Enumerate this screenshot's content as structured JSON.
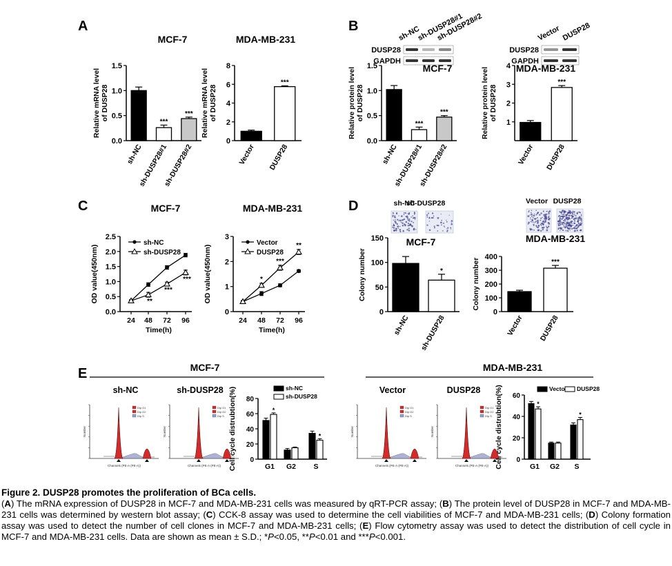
{
  "panel_letters": [
    "A",
    "B",
    "C",
    "D",
    "E"
  ],
  "chart_data": [
    {
      "id": "A1",
      "type": "bar",
      "panel": "A",
      "title": "MCF-7",
      "ylabel": "Relative mRNA level of DUSP28",
      "categories": [
        "sh-NC",
        "sh-DUSP28#1",
        "sh-DUSP28#2"
      ],
      "values": [
        1.0,
        0.26,
        0.44
      ],
      "errors": [
        0.07,
        0.05,
        0.03
      ],
      "fills": [
        "#000000",
        "#ffffff",
        "#c8c8c8"
      ],
      "annotations": [
        "",
        "***",
        "***"
      ],
      "ylim": [
        0,
        1.5
      ],
      "yticks": [
        "0.0",
        "0.5",
        "1.0",
        "1.5"
      ]
    },
    {
      "id": "A2",
      "type": "bar",
      "panel": "A",
      "title": "MDA-MB-231",
      "ylabel": "Relative mRNA level of DUSP28",
      "categories": [
        "Vector",
        "DUSP28"
      ],
      "values": [
        1.0,
        5.75
      ],
      "errors": [
        0.12,
        0.08
      ],
      "fills": [
        "#000000",
        "#ffffff"
      ],
      "annotations": [
        "",
        "***"
      ],
      "ylim": [
        0,
        8
      ],
      "yticks": [
        "0",
        "2",
        "4",
        "6",
        "8"
      ]
    },
    {
      "id": "B1",
      "type": "bar",
      "panel": "B",
      "title": "MCF-7",
      "ylabel": "Relative protein level of DUSP28",
      "categories": [
        "sh-NC",
        "sh-DUSP28#1",
        "sh-DUSP28#2"
      ],
      "values": [
        1.02,
        0.22,
        0.47
      ],
      "errors": [
        0.08,
        0.05,
        0.03
      ],
      "fills": [
        "#000000",
        "#ffffff",
        "#c8c8c8"
      ],
      "annotations": [
        "",
        "***",
        "***"
      ],
      "ylim": [
        0,
        1.5
      ],
      "yticks": [
        "0.0",
        "0.5",
        "1.0",
        "1.5"
      ]
    },
    {
      "id": "B2",
      "type": "bar",
      "panel": "B",
      "title": "MDA-MB-231",
      "ylabel": "Relative protein level of DUSP28",
      "categories": [
        "Vector",
        "DUSP28"
      ],
      "values": [
        0.97,
        2.83
      ],
      "errors": [
        0.1,
        0.1
      ],
      "fills": [
        "#000000",
        "#ffffff"
      ],
      "annotations": [
        "",
        "***"
      ],
      "ylim": [
        0,
        4
      ],
      "yticks": [
        "1",
        "2",
        "3",
        "4"
      ]
    },
    {
      "id": "C1",
      "type": "line",
      "panel": "C",
      "title": "MCF-7",
      "xlabel": "Time(h)",
      "ylabel": "OD value(450nm)",
      "x": [
        24,
        48,
        72,
        96
      ],
      "ylim": [
        0,
        2.5
      ],
      "yticks": [
        "0.0",
        "0.5",
        "1.0",
        "1.5",
        "2.0",
        "2.5"
      ],
      "series": [
        {
          "name": "sh-NC",
          "values": [
            0.36,
            0.9,
            1.47,
            1.88
          ],
          "errors": [
            0.03,
            0.06,
            0.06,
            0.06
          ],
          "marker": "dot",
          "annotations": [
            "",
            "",
            "",
            ""
          ]
        },
        {
          "name": "sh-DUSP28",
          "values": [
            0.36,
            0.56,
            0.92,
            1.3
          ],
          "errors": [
            0.03,
            0.08,
            0.06,
            0.08
          ],
          "marker": "tri",
          "annotations": [
            "",
            "**",
            "***",
            "***"
          ]
        }
      ]
    },
    {
      "id": "C2",
      "type": "line",
      "panel": "C",
      "title": "MDA-MB-231",
      "xlabel": "Time(h)",
      "ylabel": "OD value(450nm)",
      "x": [
        24,
        48,
        72,
        96
      ],
      "ylim": [
        0,
        3
      ],
      "yticks": [
        "0",
        "1",
        "2",
        "3"
      ],
      "series": [
        {
          "name": "Vector",
          "values": [
            0.4,
            0.72,
            1.05,
            1.62
          ],
          "errors": [
            0.04,
            0.08,
            0.06,
            0.05
          ],
          "marker": "dot",
          "annotations": [
            "",
            "",
            "",
            ""
          ]
        },
        {
          "name": "DUSP28",
          "values": [
            0.4,
            1.05,
            1.75,
            2.38
          ],
          "errors": [
            0.04,
            0.08,
            0.1,
            0.1
          ],
          "marker": "tri",
          "annotations": [
            "",
            "*",
            "***",
            "**"
          ]
        }
      ]
    },
    {
      "id": "D1",
      "type": "bar",
      "panel": "D",
      "title": "MCF-7",
      "ylabel": "Colony number",
      "categories": [
        "sh-NC",
        "sh-DUSP28"
      ],
      "values": [
        98,
        64
      ],
      "errors": [
        14,
        12
      ],
      "fills": [
        "#000000",
        "#ffffff"
      ],
      "annotations": [
        "",
        "*"
      ],
      "ylim": [
        0,
        150
      ],
      "yticks": [
        "0",
        "50",
        "100",
        "150"
      ]
    },
    {
      "id": "D2",
      "type": "bar",
      "panel": "D",
      "title": "MDA-MB-231",
      "ylabel": "Colony number",
      "categories": [
        "Vector",
        "DUSP28"
      ],
      "values": [
        145,
        315
      ],
      "errors": [
        10,
        20
      ],
      "fills": [
        "#000000",
        "#ffffff"
      ],
      "annotations": [
        "",
        "***"
      ],
      "ylim": [
        0,
        400
      ],
      "yticks": [
        "0",
        "100",
        "200",
        "300",
        "400"
      ]
    },
    {
      "id": "E1",
      "type": "bar",
      "panel": "E",
      "ylabel": "Cell cycle distrubtion(%)",
      "categories": [
        "G1",
        "G2",
        "S"
      ],
      "ylim": [
        0,
        80
      ],
      "yticks": [
        "0",
        "20",
        "40",
        "60",
        "80"
      ],
      "series": [
        {
          "name": "sh-NC",
          "values": [
            51,
            12,
            34
          ],
          "errors": [
            3,
            2,
            3
          ],
          "fill": "#000000"
        },
        {
          "name": "sh-DUSP28",
          "values": [
            59,
            15,
            25
          ],
          "errors": [
            2,
            1,
            2
          ],
          "fill": "#ffffff"
        }
      ],
      "annotations": [
        "*",
        "",
        "*"
      ],
      "legend": "top"
    },
    {
      "id": "E2",
      "type": "bar",
      "panel": "E",
      "ylabel": "Cell cycle distrubtion(%)",
      "categories": [
        "G1",
        "G2",
        "S"
      ],
      "ylim": [
        0,
        60
      ],
      "yticks": [
        "0",
        "20",
        "40",
        "60"
      ],
      "series": [
        {
          "name": "Vector",
          "values": [
            52,
            15,
            32
          ],
          "errors": [
            2,
            1,
            2
          ],
          "fill": "#000000"
        },
        {
          "name": "DUSP28",
          "values": [
            47,
            15,
            37
          ],
          "errors": [
            2,
            1,
            2
          ],
          "fill": "#ffffff"
        }
      ],
      "annotations": [
        "*",
        "",
        "*"
      ],
      "legend": "top"
    }
  ],
  "westerns": {
    "b1": {
      "lanes": [
        "sh-NC",
        "sh-DUSP28#1",
        "sh-DUSP28#2"
      ],
      "rows": [
        "DUSP28",
        "GAPDH"
      ]
    },
    "b2": {
      "lanes": [
        "Vector",
        "DUSP28"
      ],
      "rows": [
        "DUSP28",
        "GAPDH"
      ]
    }
  },
  "colony_labels": {
    "d1": [
      "sh-NC",
      "sh-DUSP28"
    ],
    "d2": [
      "Vector",
      "DUSP28"
    ]
  },
  "flow": {
    "e1": {
      "title": "MCF-7",
      "samples": [
        "sh-NC",
        "sh-DUSP28"
      ]
    },
    "e2": {
      "title": "MDA-MB-231",
      "samples": [
        "Vector",
        "DUSP28"
      ]
    },
    "legend_entries": [
      "Dip G1",
      "Dip G2",
      "Dip S"
    ],
    "xaxis": "Channels (PE-A (PE-A))",
    "yaxis": "Number"
  },
  "caption": {
    "title": "Figure  2. DUSP28 promotes the proliferation of BCa cells.",
    "parts": [
      [
        "(",
        "n"
      ],
      [
        "A",
        "b"
      ],
      [
        ") The mRNA expression of DUSP28 in MCF-7 and MDA-MB-231 cells was measured by qRT-PCR assay; (",
        "n"
      ],
      [
        "B",
        "b"
      ],
      [
        ") The protein level of DUSP28 in MCF-7 and MDA-MB-231 cells was determined by western blot assay; (",
        "n"
      ],
      [
        "C",
        "b"
      ],
      [
        ") CCK-8 assay was used to determine the cell viabilities of MCF-7 and MDA-MB-231 cells; (",
        "n"
      ],
      [
        "D",
        "b"
      ],
      [
        ") Colony formation assay was used to detect the number of cell clones in MCF-7 and MDA-MB-231 cells; (",
        "n"
      ],
      [
        "E",
        "b"
      ],
      [
        ") Flow cytometry assay was used to detect the distribution of cell cycle in MCF-7 and MDA-MB-231 cells. Data are shown as mean ± S.D.; *",
        "n"
      ],
      [
        "P",
        "i"
      ],
      [
        "<0.05, **",
        "n"
      ],
      [
        "P",
        "i"
      ],
      [
        "<0.01 and ***",
        "n"
      ],
      [
        "P",
        "i"
      ],
      [
        "<0.001.",
        "n"
      ]
    ]
  }
}
